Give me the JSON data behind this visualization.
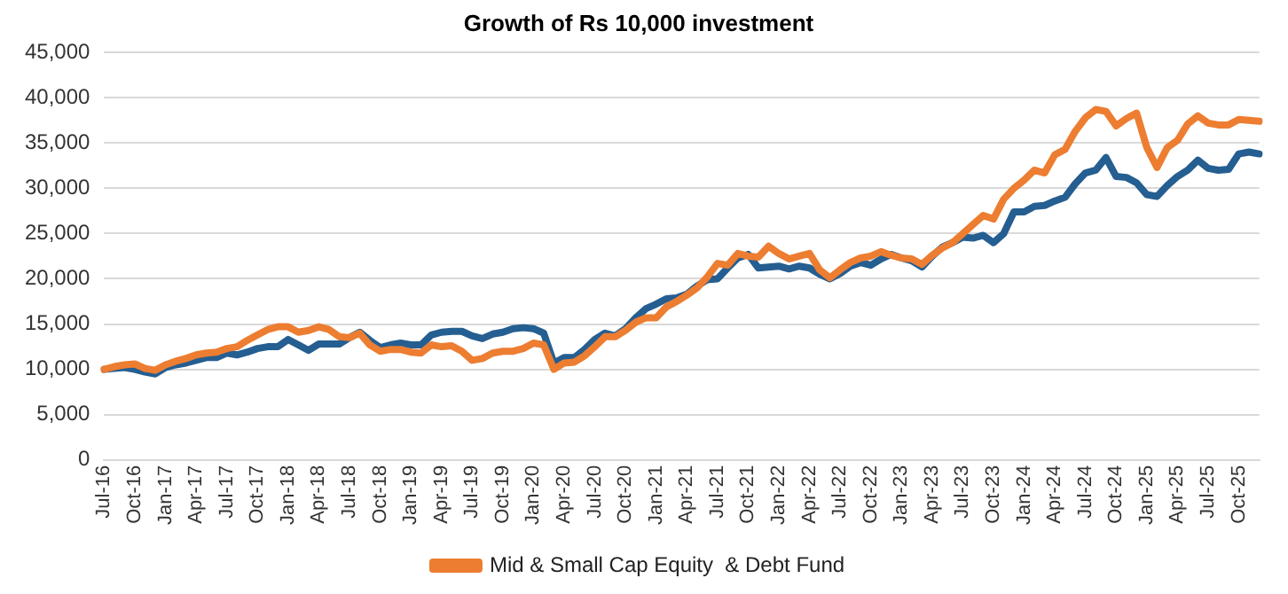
{
  "chart_data": {
    "type": "line",
    "title": "Growth of Rs 10,000 investment",
    "categories": [
      "Jul-16",
      null,
      null,
      "Oct-16",
      null,
      null,
      "Jan-17",
      null,
      null,
      "Apr-17",
      null,
      null,
      "Jul-17",
      null,
      null,
      "Oct-17",
      null,
      null,
      "Jan-18",
      null,
      null,
      "Apr-18",
      null,
      null,
      "Jul-18",
      null,
      null,
      "Oct-18",
      null,
      null,
      "Jan-19",
      null,
      null,
      "Apr-19",
      null,
      null,
      "Jul-19",
      null,
      null,
      "Oct-19",
      null,
      null,
      "Jan-20",
      null,
      null,
      "Apr-20",
      null,
      null,
      "Jul-20",
      null,
      null,
      "Oct-20",
      null,
      null,
      "Jan-21",
      null,
      null,
      "Apr-21",
      null,
      null,
      "Jul-21",
      null,
      null,
      "Oct-21",
      null,
      null,
      "Jan-22",
      null,
      null,
      "Apr-22",
      null,
      null,
      "Jul-22",
      null,
      null,
      "Oct-22",
      null,
      null,
      "Jan-23",
      null,
      null,
      "Apr-23",
      null,
      null,
      "Jul-23",
      null,
      null,
      "Oct-23",
      null,
      null,
      "Jan-24",
      null,
      null,
      "Apr-24",
      null,
      null,
      "Jul-24",
      null,
      null,
      "Oct-24",
      null,
      null,
      "Jan-25",
      null,
      null,
      "Apr-25",
      null,
      null,
      "Jul-25",
      null,
      null,
      "Oct-25",
      null,
      null
    ],
    "series": [
      {
        "name": "Mid & Small Cap Equity  & Debt Fund",
        "color": "#ed7d31",
        "values": [
          10000,
          10300,
          10500,
          10600,
          10100,
          9900,
          10500,
          10900,
          11200,
          11600,
          11800,
          11900,
          12300,
          12500,
          13200,
          13800,
          14400,
          14700,
          14700,
          14100,
          14300,
          14700,
          14400,
          13600,
          13500,
          14000,
          12700,
          12000,
          12200,
          12200,
          11900,
          11800,
          12700,
          12500,
          12600,
          12000,
          11000,
          11200,
          11800,
          12000,
          12000,
          12300,
          12900,
          12700,
          10000,
          10700,
          10800,
          11500,
          12500,
          13600,
          13600,
          14300,
          15200,
          15700,
          15700,
          16900,
          17500,
          18200,
          19000,
          20200,
          21700,
          21500,
          22800,
          22500,
          22400,
          23600,
          22800,
          22200,
          22500,
          22800,
          21000,
          20100,
          21000,
          21800,
          22300,
          22500,
          23000,
          22600,
          22300,
          22200,
          21600,
          22600,
          23400,
          24000,
          25000,
          26000,
          27000,
          26600,
          28800,
          30000,
          30900,
          32000,
          31700,
          33700,
          34300,
          36300,
          37800,
          38700,
          38500,
          36900,
          37700,
          38300,
          34500,
          32300,
          34500,
          35300,
          37100,
          38000,
          37200,
          37000,
          37000,
          37600,
          37500,
          37400
        ]
      },
      {
        "color": "#255e91",
        "values": [
          10000,
          10100,
          10200,
          10000,
          9700,
          9500,
          10200,
          10500,
          10700,
          11000,
          11300,
          11300,
          11800,
          11600,
          11900,
          12300,
          12500,
          12500,
          13300,
          12700,
          12100,
          12800,
          12800,
          12800,
          13500,
          14100,
          13200,
          12400,
          12700,
          12900,
          12700,
          12700,
          13800,
          14100,
          14200,
          14200,
          13700,
          13400,
          13900,
          14100,
          14500,
          14600,
          14500,
          14000,
          10700,
          11300,
          11300,
          12200,
          13300,
          14000,
          13700,
          14500,
          15700,
          16700,
          17200,
          17800,
          17900,
          18300,
          19200,
          19900,
          20000,
          21200,
          22300,
          22700,
          21200,
          21300,
          21400,
          21100,
          21400,
          21200,
          20500,
          20000,
          20600,
          21400,
          21800,
          21500,
          22200,
          22700,
          22300,
          22000,
          21300,
          22500,
          23500,
          24000,
          24600,
          24500,
          24800,
          24000,
          25000,
          27400,
          27400,
          28000,
          28100,
          28600,
          29000,
          30500,
          31700,
          32000,
          33400,
          31300,
          31200,
          30600,
          29300,
          29100,
          30300,
          31300,
          32000,
          33100,
          32200,
          32000,
          32100,
          33800,
          34000,
          33800
        ]
      }
    ],
    "ylim": [
      0,
      45000
    ],
    "yticks": [
      0,
      {
        "value": 5000,
        "label": "5,000"
      },
      {
        "value": 10000,
        "label": "10,000"
      },
      {
        "value": 15000,
        "label": "15,000"
      },
      {
        "value": 20000,
        "label": "20,000"
      },
      {
        "value": 25000,
        "label": "25,000"
      },
      {
        "value": 30000,
        "label": "30,000"
      },
      {
        "value": 35000,
        "label": "35,000"
      },
      {
        "value": 40000,
        "label": "40,000"
      },
      {
        "value": 45000,
        "label": "45,000"
      }
    ],
    "grid": "y",
    "legend": "bottom",
    "marker": "none",
    "line_style": "solid"
  }
}
